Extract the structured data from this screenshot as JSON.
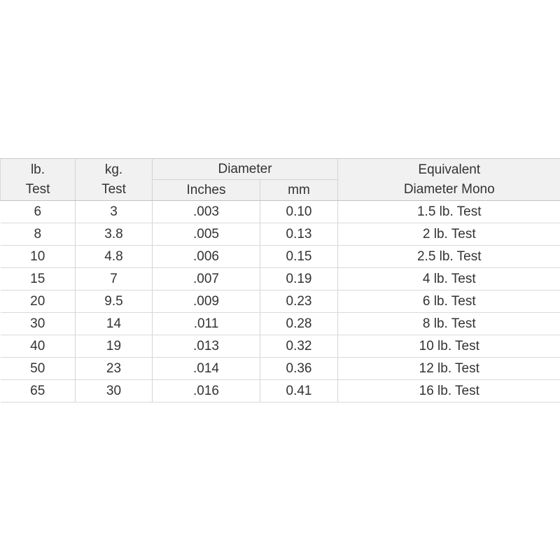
{
  "chart_data": {
    "type": "table",
    "title": "",
    "columns": [
      "lb. Test",
      "kg. Test",
      "Diameter Inches",
      "Diameter mm",
      "Equivalent Diameter Mono"
    ],
    "rows": [
      [
        "6",
        "3",
        ".003",
        "0.10",
        "1.5 lb. Test"
      ],
      [
        "8",
        "3.8",
        ".005",
        "0.13",
        "2 lb. Test"
      ],
      [
        "10",
        "4.8",
        ".006",
        "0.15",
        "2.5 lb. Test"
      ],
      [
        "15",
        "7",
        ".007",
        "0.19",
        "4 lb. Test"
      ],
      [
        "20",
        "9.5",
        ".009",
        "0.23",
        "6 lb. Test"
      ],
      [
        "30",
        "14",
        ".011",
        "0.28",
        "8 lb. Test"
      ],
      [
        "40",
        "19",
        ".013",
        "0.32",
        "10 lb. Test"
      ],
      [
        "50",
        "23",
        ".014",
        "0.36",
        "12 lb. Test"
      ],
      [
        "65",
        "30",
        ".016",
        "0.41",
        "16 lb. Test"
      ]
    ],
    "layout": {
      "grid": true,
      "header_background": "#f1f1f1"
    }
  },
  "header": {
    "lb_test": {
      "line1": "lb.",
      "line2": "Test"
    },
    "kg_test": {
      "line1": "kg.",
      "line2": "Test"
    },
    "diameter": {
      "label": "Diameter",
      "sub": [
        "Inches",
        "mm"
      ]
    },
    "equivalent": {
      "line1": "Equivalent",
      "line2": "Diameter Mono"
    }
  },
  "colors": {
    "header_bg": "#f1f1f1",
    "cell_border_vertical": "#d4d4d4",
    "row_separator": "#dadada",
    "header_outline": "#c2c2c2",
    "text": "#333333"
  }
}
